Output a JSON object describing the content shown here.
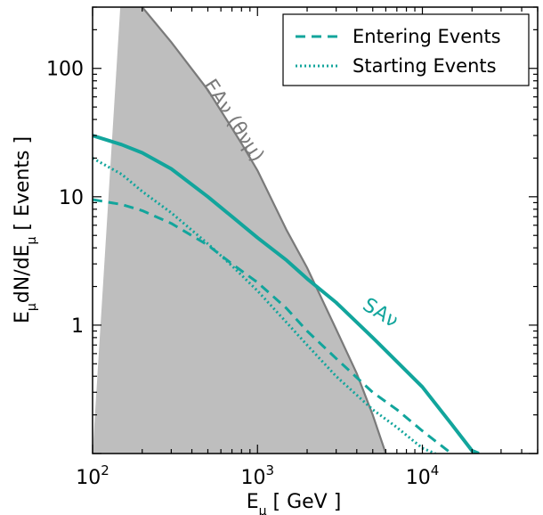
{
  "chart_data": {
    "type": "line",
    "xscale": "log",
    "yscale": "log",
    "xlim": [
      100,
      50000
    ],
    "ylim": [
      0.1,
      300
    ],
    "xlabel_base": "E",
    "xlabel_sub": "μ",
    "xlabel_rest": " [ GeV ]",
    "ylabel_main": "E",
    "ylabel_sub1": "μ",
    "ylabel_mid": "dN/dE",
    "ylabel_sub2": "μ",
    "ylabel_rest": " [ Events ]",
    "x_ticks": [
      {
        "value": 100,
        "base": "10",
        "exp": "2"
      },
      {
        "value": 1000,
        "base": "10",
        "exp": "3"
      },
      {
        "value": 10000,
        "base": "10",
        "exp": "4"
      }
    ],
    "y_ticks": [
      {
        "value": 1,
        "label": "1"
      },
      {
        "value": 10,
        "label": "10"
      },
      {
        "value": 100,
        "label": "100"
      }
    ],
    "legend": {
      "position": "upper right",
      "entries": [
        {
          "label": "Entering Events",
          "style": "dashed"
        },
        {
          "label": "Starting Events",
          "style": "dotted"
        }
      ]
    },
    "colors": {
      "series": "#12a59c",
      "region_fill": "#bebebe",
      "region_edge": "#7a7a7a"
    },
    "annotations": {
      "region_label": "EAν (θνμ)",
      "solid_label": "SAν"
    },
    "shaded_region": {
      "x": [
        150,
        200,
        300,
        500,
        800,
        1000,
        1500,
        2000,
        3000,
        4000,
        5000,
        6000
      ],
      "y": [
        440,
        300,
        160,
        68,
        26,
        16,
        5.5,
        2.8,
        0.93,
        0.42,
        0.2,
        0.1
      ]
    },
    "series": [
      {
        "style": "solid",
        "x": [
          100,
          150,
          200,
          300,
          500,
          700,
          1000,
          1500,
          2000,
          3000,
          5000,
          7000,
          10000,
          15000,
          20000,
          22000
        ],
        "y": [
          30,
          25.5,
          22,
          16.5,
          10,
          7,
          4.8,
          3.2,
          2.3,
          1.5,
          0.8,
          0.52,
          0.33,
          0.17,
          0.105,
          0.1
        ]
      },
      {
        "style": "dashed",
        "x": [
          100,
          150,
          200,
          300,
          500,
          700,
          1000,
          1500,
          2000,
          3000,
          5000,
          7000,
          10000,
          15000
        ],
        "y": [
          9.5,
          8.7,
          7.8,
          6.2,
          4.2,
          3.0,
          2.15,
          1.35,
          0.9,
          0.55,
          0.3,
          0.22,
          0.15,
          0.1
        ]
      },
      {
        "style": "dotted",
        "x": [
          100,
          150,
          200,
          300,
          500,
          700,
          1000,
          1500,
          2000,
          3000,
          5000,
          7000,
          10000,
          12000
        ],
        "y": [
          20,
          15,
          11,
          7.5,
          4.3,
          2.9,
          1.85,
          1.05,
          0.7,
          0.4,
          0.22,
          0.16,
          0.11,
          0.1
        ]
      }
    ]
  }
}
